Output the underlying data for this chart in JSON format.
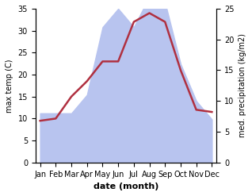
{
  "months": [
    "Jan",
    "Feb",
    "Mar",
    "Apr",
    "May",
    "Jun",
    "Jul",
    "Aug",
    "Sep",
    "Oct",
    "Nov",
    "Dec"
  ],
  "month_positions": [
    0,
    1,
    2,
    3,
    4,
    5,
    6,
    7,
    8,
    9,
    10,
    11
  ],
  "temperature": [
    9.5,
    10.0,
    15.0,
    18.5,
    23.0,
    23.0,
    32.0,
    34.0,
    32.0,
    21.0,
    12.0,
    11.5
  ],
  "precipitation": [
    8,
    8,
    8,
    11,
    22,
    25,
    22,
    27,
    26,
    16,
    10,
    7
  ],
  "temp_color": "#b03040",
  "precip_fill_color": "#b8c4ef",
  "left_ylabel": "max temp (C)",
  "right_ylabel": "med. precipitation (kg/m2)",
  "xlabel": "date (month)",
  "left_ylim": [
    0,
    35
  ],
  "right_ylim": [
    0,
    25
  ],
  "left_yticks": [
    0,
    5,
    10,
    15,
    20,
    25,
    30,
    35
  ],
  "right_yticks": [
    0,
    5,
    10,
    15,
    20,
    25
  ],
  "bg_color": "#ffffff"
}
